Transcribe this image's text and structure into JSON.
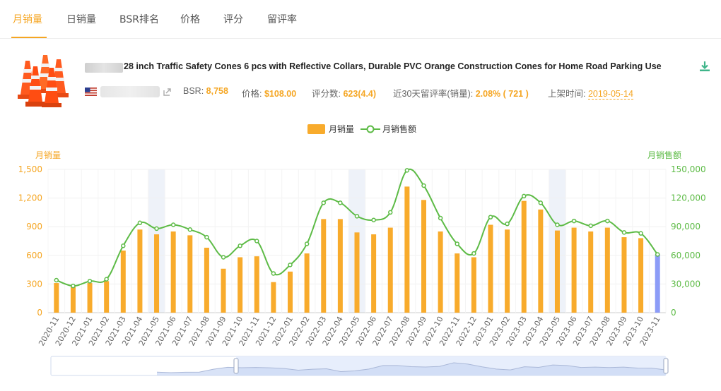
{
  "tabs": [
    {
      "label": "月销量",
      "active": true
    },
    {
      "label": "日销量",
      "active": false
    },
    {
      "label": "BSR排名",
      "active": false
    },
    {
      "label": "价格",
      "active": false
    },
    {
      "label": "评分",
      "active": false
    },
    {
      "label": "留评率",
      "active": false
    }
  ],
  "product": {
    "title": "28 inch Traffic Safety Cones 6 pcs with Reflective Collars, Durable PVC Orange Construction Cones for Home Road Parking Use",
    "bsr_label": "BSR:",
    "bsr_value": "8,758",
    "price_label": "价格:",
    "price_value": "$108.00",
    "reviews_label": "评分数:",
    "reviews_value": "623(4.4)",
    "review_rate_label": "近30天留评率(销量):",
    "review_rate_value": "2.08% ( 721 )",
    "listed_label": "上架时间:",
    "listed_value": "2019-05-14",
    "icons": {
      "download": "download-icon",
      "share": "share-icon",
      "flag": "us-flag-icon"
    }
  },
  "colors": {
    "accent": "#f5a623",
    "bar": "#f8ab2c",
    "bar_highlight": "#8c9cf7",
    "line": "#5dbb46",
    "shade": "#eef2f9"
  },
  "chart_data": {
    "type": "bar",
    "legend": [
      "月销量",
      "月销售额"
    ],
    "legend_position": "top-center",
    "y_left_label": "月销量",
    "y_right_label": "月销售额",
    "y_left_ticks": [
      "0",
      "300",
      "600",
      "900",
      "1,200",
      "1,500"
    ],
    "y_right_ticks": [
      "0",
      "30,000",
      "60,000",
      "90,000",
      "120,000",
      "150,000"
    ],
    "ylim_left": [
      0,
      1500
    ],
    "ylim_right": [
      0,
      150000
    ],
    "grid": true,
    "categories": [
      "2020-11",
      "2020-12",
      "2021-01",
      "2021-02",
      "2021-03",
      "2021-04",
      "2021-05",
      "2021-06",
      "2021-07",
      "2021-08",
      "2021-09",
      "2021-10",
      "2021-11",
      "2021-12",
      "2022-01",
      "2022-02",
      "2022-03",
      "2022-04",
      "2022-05",
      "2022-06",
      "2022-07",
      "2022-08",
      "2022-09",
      "2022-10",
      "2022-11",
      "2022-12",
      "2023-01",
      "2023-02",
      "2023-03",
      "2023-04",
      "2023-05",
      "2023-06",
      "2023-07",
      "2023-08",
      "2023-09",
      "2023-10",
      "2023-11"
    ],
    "series": [
      {
        "name": "月销量",
        "type": "bar",
        "values": [
          310,
          270,
          310,
          330,
          650,
          870,
          820,
          850,
          810,
          680,
          460,
          580,
          590,
          320,
          430,
          620,
          980,
          980,
          840,
          820,
          890,
          1320,
          1180,
          850,
          620,
          580,
          920,
          870,
          1170,
          1080,
          860,
          890,
          850,
          890,
          790,
          780,
          610
        ]
      },
      {
        "name": "月销售额",
        "type": "line",
        "values": [
          34000,
          28000,
          33000,
          35000,
          70000,
          94000,
          88000,
          92000,
          87000,
          79000,
          58000,
          70000,
          75000,
          41000,
          50000,
          72000,
          115000,
          115000,
          101000,
          97000,
          105000,
          149000,
          133000,
          99000,
          72000,
          62000,
          100000,
          93000,
          122000,
          115000,
          92000,
          96000,
          91000,
          96000,
          84000,
          83000,
          61000
        ]
      }
    ],
    "highlight_last_bar": true,
    "shaded_columns": [
      "2021-05",
      "2022-05",
      "2023-05"
    ]
  }
}
